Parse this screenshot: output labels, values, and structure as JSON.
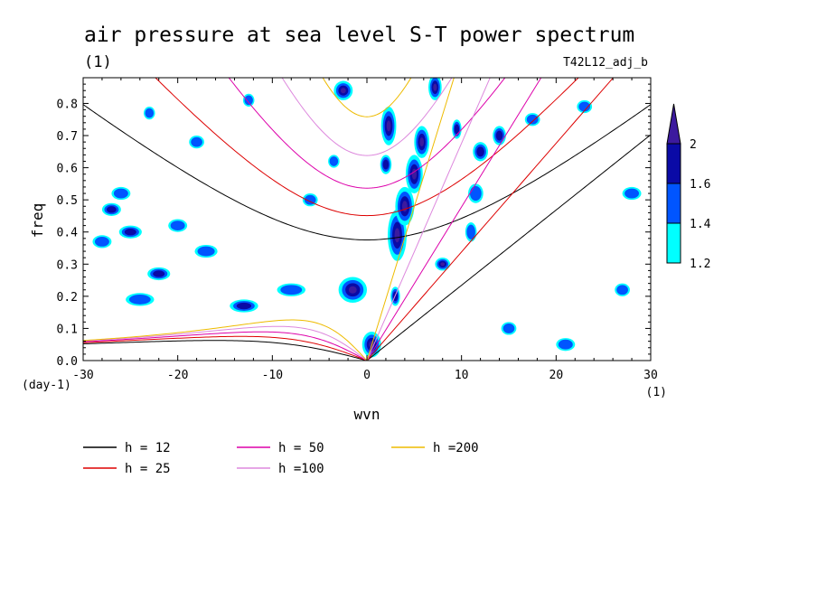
{
  "chart_data": {
    "type": "heatmap",
    "title": "air pressure at sea level S-T power spectrum",
    "subtitle_left": "(1)",
    "subtitle_right": "T42L12_adj_b",
    "xlabel": "wvn",
    "ylabel": "freq",
    "x_unit": "(1)",
    "y_unit": "(day-1)",
    "xlim": [
      -30,
      30
    ],
    "ylim": [
      0,
      0.88
    ],
    "x_ticks": [
      -30,
      -20,
      -10,
      0,
      10,
      20,
      30
    ],
    "x_tick_labels": [
      "-30",
      "-20",
      "-10",
      "0",
      "10",
      "20",
      "30"
    ],
    "y_ticks": [
      0,
      0.1,
      0.2,
      0.3,
      0.4,
      0.5,
      0.6,
      0.7,
      0.8
    ],
    "y_tick_labels": [
      "0.0",
      "0.1",
      "0.2",
      "0.3",
      "0.4",
      "0.5",
      "0.6",
      "0.7",
      "0.8"
    ],
    "colorbar": {
      "levels": [
        1.2,
        1.4,
        1.6,
        2
      ],
      "labels": [
        "1.2",
        "1.4",
        "1.6",
        "2"
      ],
      "colors": [
        "#00ffff",
        "#0055ff",
        "#0a0aa6",
        "#3c1a9e"
      ],
      "extend": "max"
    },
    "dispersion_curves": [
      {
        "label": "h = 12",
        "h": 12,
        "color": "#000000"
      },
      {
        "label": "h = 25",
        "h": 25,
        "color": "#dd0000"
      },
      {
        "label": "h = 50",
        "h": 50,
        "color": "#dd00aa"
      },
      {
        "label": "h =100",
        "h": 100,
        "color": "#dd88dd"
      },
      {
        "label": "h =200",
        "h": 200,
        "color": "#eebb00"
      }
    ],
    "power_blobs": [
      {
        "x": 3.2,
        "y": 0.39,
        "rx": 1.0,
        "ry": 0.08,
        "level": 3
      },
      {
        "x": 4.0,
        "y": 0.48,
        "rx": 1.0,
        "ry": 0.06,
        "level": 3
      },
      {
        "x": 5.0,
        "y": 0.58,
        "rx": 0.9,
        "ry": 0.06,
        "level": 3
      },
      {
        "x": 5.8,
        "y": 0.68,
        "rx": 0.8,
        "ry": 0.05,
        "level": 3
      },
      {
        "x": 7.2,
        "y": 0.85,
        "rx": 0.7,
        "ry": 0.04,
        "level": 3
      },
      {
        "x": 2.3,
        "y": 0.73,
        "rx": 0.8,
        "ry": 0.06,
        "level": 3
      },
      {
        "x": 2.0,
        "y": 0.61,
        "rx": 0.6,
        "ry": 0.03,
        "level": 2
      },
      {
        "x": -1.5,
        "y": 0.22,
        "rx": 1.5,
        "ry": 0.04,
        "level": 3
      },
      {
        "x": 0.5,
        "y": 0.05,
        "rx": 1.0,
        "ry": 0.04,
        "level": 3
      },
      {
        "x": -2.5,
        "y": 0.84,
        "rx": 1.0,
        "ry": 0.03,
        "level": 3
      },
      {
        "x": 8.0,
        "y": 0.3,
        "rx": 0.8,
        "ry": 0.02,
        "level": 3
      },
      {
        "x": -25.0,
        "y": 0.4,
        "rx": 1.2,
        "ry": 0.02,
        "level": 2
      },
      {
        "x": -22.0,
        "y": 0.27,
        "rx": 1.2,
        "ry": 0.02,
        "level": 2
      },
      {
        "x": -13.0,
        "y": 0.17,
        "rx": 1.5,
        "ry": 0.02,
        "level": 2
      },
      {
        "x": -27.0,
        "y": 0.47,
        "rx": 1.0,
        "ry": 0.02,
        "level": 2
      },
      {
        "x": -28.0,
        "y": 0.37,
        "rx": 1.0,
        "ry": 0.02,
        "level": 1
      },
      {
        "x": -17.0,
        "y": 0.34,
        "rx": 1.2,
        "ry": 0.02,
        "level": 1
      },
      {
        "x": -8.0,
        "y": 0.22,
        "rx": 1.5,
        "ry": 0.02,
        "level": 1
      },
      {
        "x": -20.0,
        "y": 0.42,
        "rx": 1.0,
        "ry": 0.02,
        "level": 1
      },
      {
        "x": -24.0,
        "y": 0.19,
        "rx": 1.5,
        "ry": 0.02,
        "level": 1
      },
      {
        "x": -26.0,
        "y": 0.52,
        "rx": 1.0,
        "ry": 0.02,
        "level": 1
      },
      {
        "x": 12.0,
        "y": 0.65,
        "rx": 0.8,
        "ry": 0.03,
        "level": 2
      },
      {
        "x": 11.5,
        "y": 0.52,
        "rx": 0.8,
        "ry": 0.03,
        "level": 1
      },
      {
        "x": 14.0,
        "y": 0.7,
        "rx": 0.7,
        "ry": 0.03,
        "level": 2
      },
      {
        "x": 17.5,
        "y": 0.75,
        "rx": 0.8,
        "ry": 0.02,
        "level": 1
      },
      {
        "x": 23.0,
        "y": 0.79,
        "rx": 0.8,
        "ry": 0.02,
        "level": 1
      },
      {
        "x": 28.0,
        "y": 0.52,
        "rx": 1.0,
        "ry": 0.02,
        "level": 1
      },
      {
        "x": 27.0,
        "y": 0.22,
        "rx": 0.8,
        "ry": 0.02,
        "level": 1
      },
      {
        "x": 15.0,
        "y": 0.1,
        "rx": 0.8,
        "ry": 0.02,
        "level": 1
      },
      {
        "x": 21.0,
        "y": 0.05,
        "rx": 1.0,
        "ry": 0.02,
        "level": 1
      },
      {
        "x": -18.0,
        "y": 0.68,
        "rx": 0.8,
        "ry": 0.02,
        "level": 1
      },
      {
        "x": -6.0,
        "y": 0.5,
        "rx": 0.8,
        "ry": 0.02,
        "level": 1
      },
      {
        "x": -23.0,
        "y": 0.77,
        "rx": 0.6,
        "ry": 0.02,
        "level": 1
      },
      {
        "x": -12.5,
        "y": 0.81,
        "rx": 0.6,
        "ry": 0.02,
        "level": 1
      },
      {
        "x": 9.5,
        "y": 0.72,
        "rx": 0.5,
        "ry": 0.03,
        "level": 2
      },
      {
        "x": 11.0,
        "y": 0.4,
        "rx": 0.6,
        "ry": 0.03,
        "level": 1
      },
      {
        "x": -3.5,
        "y": 0.62,
        "rx": 0.6,
        "ry": 0.02,
        "level": 1
      },
      {
        "x": 3.0,
        "y": 0.2,
        "rx": 0.5,
        "ry": 0.03,
        "level": 2
      }
    ]
  }
}
